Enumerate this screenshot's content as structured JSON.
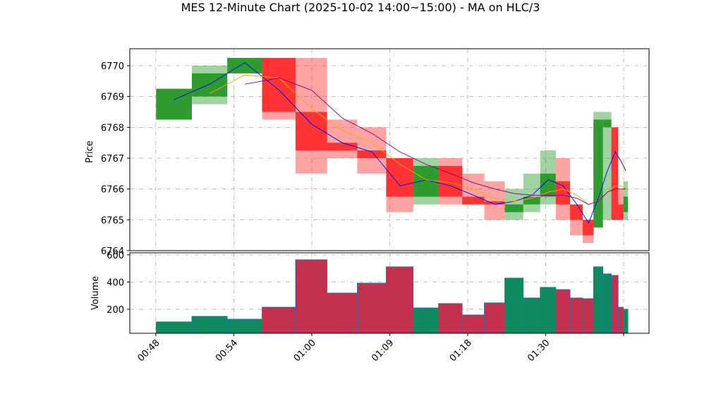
{
  "chart_data": {
    "type": "candlestick",
    "title": "MES 12-Minute Chart (2025-10-02 14:00~15:00) - MA on HLC/3",
    "ylabel": "Price",
    "volume_label": "Volume",
    "x": [
      1.4,
      4.15,
      6.85,
      9.5,
      12,
      14.35,
      16.65,
      18.8,
      20.8,
      22.7,
      24.45,
      26.1,
      27.6,
      28.95,
      30.2,
      31.35,
      32.4,
      33.3,
      34.05,
      34.75,
      35.35,
      35.8,
      36.15
    ],
    "open": [
      6768.25,
      6769,
      6769.75,
      6770.25,
      6768.5,
      6767.5,
      6767.25,
      6767,
      6765.75,
      6766.75,
      6765.75,
      6765.6,
      6765.25,
      6765.5,
      6765.75,
      6766.25,
      6765.5,
      6765,
      6764.75,
      6768,
      6768,
      6765.5,
      6765.25
    ],
    "high": [
      6769.25,
      6770,
      6770.25,
      6770.25,
      6770.25,
      6768.25,
      6768,
      6767,
      6767,
      6767,
      6766.5,
      6766.25,
      6766,
      6766.5,
      6767.25,
      6767,
      6765.5,
      6765,
      6768.5,
      6768.5,
      6768,
      6766,
      6766.25
    ],
    "low": [
      6768.25,
      6768.75,
      6769.75,
      6768.25,
      6766.5,
      6767,
      6766.5,
      6765.25,
      6765.5,
      6765.5,
      6765.5,
      6765,
      6765,
      6765.25,
      6765.5,
      6765,
      6764.5,
      6764.25,
      6764.75,
      6765,
      6765,
      6765,
      6765
    ],
    "close": [
      6769.25,
      6769.75,
      6770.25,
      6768.5,
      6767.25,
      6767.25,
      6767,
      6765.75,
      6766.75,
      6765.75,
      6765.5,
      6765.5,
      6765.5,
      6765.75,
      6766.5,
      6765.5,
      6765,
      6764.5,
      6768.25,
      6768.25,
      6765,
      6765,
      6765.75
    ],
    "volume": [
      107,
      148,
      127,
      215,
      564,
      319,
      392,
      512,
      210,
      242,
      158,
      247,
      429,
      283,
      361,
      345,
      283,
      278,
      512,
      460,
      449,
      215,
      200
    ],
    "up_color": "#2e9b2e",
    "down_color": "#ff3333",
    "volume_up_color": "#0f8a5f",
    "volume_down_color": "#c2304d",
    "volume_edge_color": "#1f77b4",
    "ma_series": [
      {
        "color": "#0000ff",
        "values": [
          6768.9,
          6769.4,
          6770.1,
          6769.2,
          6768.1,
          6767.5,
          6767.2,
          6766.1,
          6766.3,
          6766.1,
          6765.8,
          6765.5,
          6765.6,
          6765.8,
          6766.3,
          6766.1,
          6765.5,
          6764.9,
          6765.7,
          6766.6,
          6767.2,
          6766.9,
          6766.6
        ]
      },
      {
        "color": "#ffa500",
        "values": [
          null,
          6769.1,
          6769.7,
          6769.6,
          6768.6,
          6767.9,
          6767.5,
          6766.8,
          6766.3,
          6766.2,
          6766.0,
          6765.7,
          6765.6,
          6765.7,
          6765.9,
          6766.0,
          6765.8,
          6765.5,
          6765.6,
          6765.9,
          6766.1,
          6766.1,
          6766.0
        ]
      },
      {
        "color": "#800080",
        "values": [
          null,
          null,
          6769.4,
          6769.6,
          6769.2,
          6768.3,
          6767.8,
          6767.2,
          6766.8,
          6766.5,
          6766.2,
          6766.0,
          6765.85,
          6765.8,
          6765.8,
          6765.8,
          6765.7,
          6765.5,
          6765.6,
          6765.9,
          6766.0,
          6766.0,
          6766.0
        ]
      }
    ],
    "xlim": [
      -2,
      37.95
    ],
    "xticks": [
      {
        "value": 0,
        "label": "00:48"
      },
      {
        "value": 6,
        "label": "00:54"
      },
      {
        "value": 12,
        "label": "01:00"
      },
      {
        "value": 18,
        "label": "01:09"
      },
      {
        "value": 24,
        "label": "01:18"
      },
      {
        "value": 30,
        "label": "01:30"
      },
      {
        "value": 36,
        "label": null
      }
    ],
    "ylim": [
      6764,
      6770.55
    ],
    "yticks": [
      6764,
      6765,
      6766,
      6767,
      6768,
      6769,
      6770
    ],
    "vlim": [
      23,
      615
    ],
    "vticks": [
      200,
      400,
      600
    ],
    "grid": true
  }
}
